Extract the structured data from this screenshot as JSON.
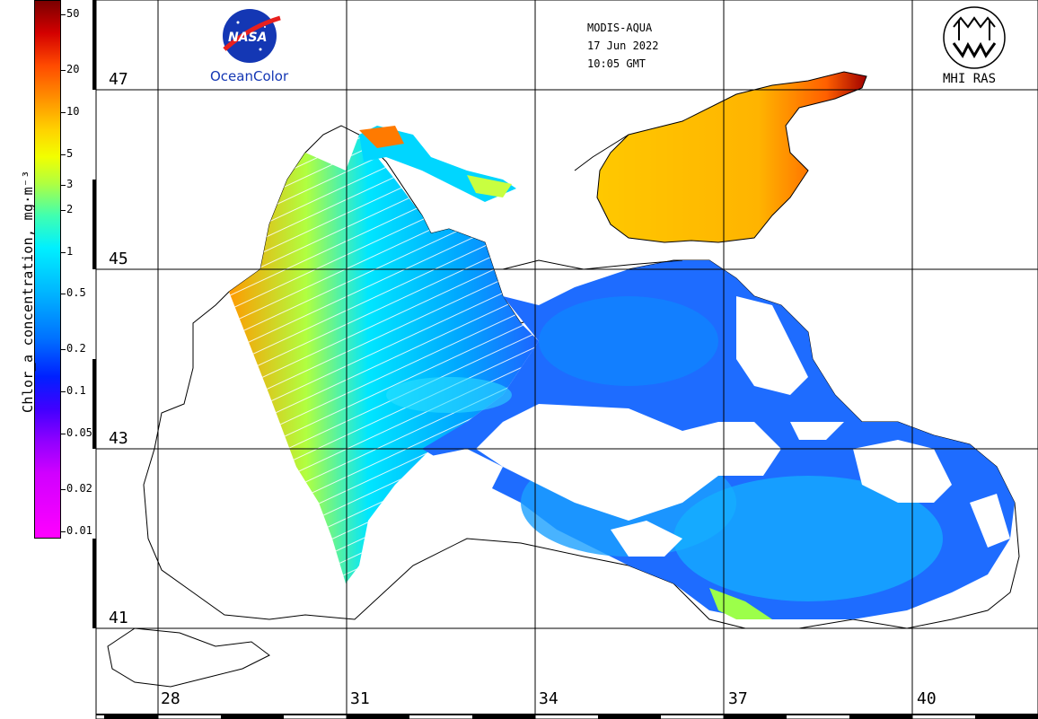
{
  "header": {
    "sensor": "MODIS-AQUA",
    "date": "17 Jun 2022",
    "time": "10:05 GMT"
  },
  "logos": {
    "nasa_wordmark": "NASA",
    "nasa_caption": "OceanColor",
    "mhi_caption": "MHI RAS"
  },
  "colorbar": {
    "title": "Chlor_a concentration, mg·m⁻³",
    "ticks": [
      "50",
      "20",
      "10",
      "5",
      "3",
      "2",
      "1",
      "0.5",
      "0.2",
      "0.1",
      "0.05",
      "0.02",
      "0.01"
    ],
    "scale": "log",
    "range": [
      0.01,
      50
    ]
  },
  "grid": {
    "latitudes": [
      "47",
      "45",
      "43",
      "41"
    ],
    "longitudes": [
      "28",
      "31",
      "34",
      "37",
      "40"
    ]
  },
  "colors": {
    "ocean_low": "#1e64ff",
    "ocean_mid": "#00a8ff",
    "ocean_high": "#ffd200",
    "coast": "#000000",
    "cloud": "#ffffff"
  }
}
